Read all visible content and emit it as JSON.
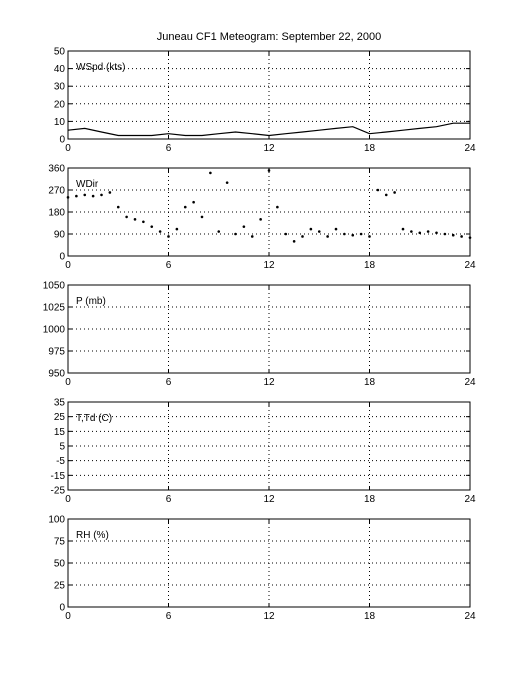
{
  "title": "Juneau CF1 Meteogram: September 22, 2000",
  "colors": {
    "axes": "#000000",
    "grid": "#000000",
    "data": "#000000",
    "background": "#ffffff"
  },
  "chart_data": [
    {
      "type": "line",
      "label": "WSpd (kts)",
      "xlim": [
        0,
        24
      ],
      "ylim": [
        0,
        50
      ],
      "xticks": [
        0,
        6,
        12,
        18,
        24
      ],
      "yticks": [
        0,
        10,
        20,
        30,
        40,
        50
      ],
      "grid": true,
      "x": [
        0,
        1,
        2,
        3,
        4,
        5,
        6,
        7,
        8,
        9,
        10,
        11,
        12,
        13,
        14,
        15,
        16,
        17,
        18,
        19,
        20,
        21,
        22,
        23,
        24
      ],
      "y": [
        5,
        6,
        4,
        2,
        2,
        2,
        3,
        2,
        2,
        3,
        4,
        3,
        2,
        3,
        4,
        5,
        6,
        7,
        3,
        4,
        5,
        6,
        7,
        9,
        9
      ]
    },
    {
      "type": "scatter",
      "label": "WDir",
      "xlim": [
        0,
        24
      ],
      "ylim": [
        0,
        360
      ],
      "xticks": [
        0,
        6,
        12,
        18,
        24
      ],
      "yticks": [
        0,
        90,
        180,
        270,
        360
      ],
      "grid": true,
      "x": [
        0,
        0.5,
        1,
        1.5,
        2,
        2.5,
        3,
        3.5,
        4,
        4.5,
        5,
        5.5,
        6,
        6.5,
        7,
        7.5,
        8,
        8.5,
        9,
        9.5,
        10,
        10.5,
        11,
        11.5,
        12,
        12.5,
        13,
        13.5,
        14,
        14.5,
        15,
        15.5,
        16,
        16.5,
        17,
        17.5,
        18,
        18.5,
        19,
        19.5,
        20,
        20.5,
        21,
        21.5,
        22,
        22.5,
        23,
        23.5,
        24
      ],
      "y": [
        240,
        245,
        250,
        245,
        250,
        260,
        200,
        160,
        150,
        140,
        120,
        100,
        80,
        110,
        200,
        220,
        160,
        340,
        100,
        300,
        90,
        120,
        80,
        150,
        350,
        200,
        90,
        60,
        80,
        110,
        100,
        80,
        110,
        90,
        85,
        90,
        80,
        270,
        250,
        260,
        110,
        100,
        95,
        100,
        95,
        90,
        85,
        80,
        75
      ]
    },
    {
      "type": "line",
      "label": "P (mb)",
      "xlim": [
        0,
        24
      ],
      "ylim": [
        950,
        1050
      ],
      "xticks": [
        0,
        6,
        12,
        18,
        24
      ],
      "yticks": [
        950,
        975,
        1000,
        1025,
        1050
      ],
      "grid": true,
      "x": [],
      "y": []
    },
    {
      "type": "line",
      "label": "T,Td (C)",
      "xlim": [
        0,
        24
      ],
      "ylim": [
        -25,
        35
      ],
      "xticks": [
        0,
        6,
        12,
        18,
        24
      ],
      "yticks": [
        -25,
        -15,
        -5,
        5,
        15,
        25,
        35
      ],
      "grid": true,
      "x": [],
      "y": []
    },
    {
      "type": "line",
      "label": "RH (%)",
      "xlim": [
        0,
        24
      ],
      "ylim": [
        0,
        100
      ],
      "xticks": [
        0,
        6,
        12,
        18,
        24
      ],
      "yticks": [
        0,
        25,
        50,
        75,
        100
      ],
      "grid": true,
      "x": [],
      "y": []
    }
  ]
}
